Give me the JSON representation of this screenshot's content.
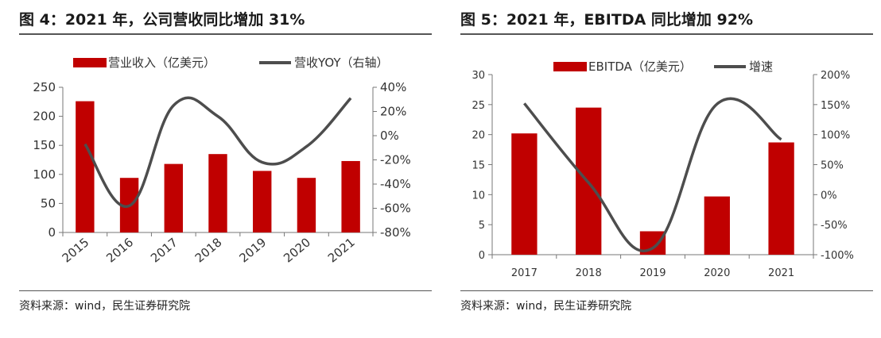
{
  "left": {
    "title": "图 4：2021 年，公司营收同比增加 31%",
    "source": "资料来源：wind，民生证券研究院",
    "chart_data": {
      "type": "bar",
      "categories": [
        "2015",
        "2016",
        "2017",
        "2018",
        "2019",
        "2020",
        "2021"
      ],
      "series": [
        {
          "name": "营业收入（亿美元）",
          "type": "bar",
          "axis": "left",
          "color": "#C00000",
          "values": [
            226,
            94,
            118,
            135,
            106,
            94,
            123
          ]
        },
        {
          "name": "营收YOY（右轴）",
          "type": "line",
          "axis": "right",
          "color": "#4D4D4D",
          "values": [
            -7,
            -58,
            25,
            16,
            -22,
            -9,
            31
          ]
        }
      ],
      "ylim": [
        0,
        250
      ],
      "yticks": [
        "0",
        "50",
        "100",
        "150",
        "200",
        "250"
      ],
      "y2lim": [
        -80,
        40
      ],
      "y2ticks": [
        "-80%",
        "-60%",
        "-40%",
        "-20%",
        "0%",
        "20%",
        "40%"
      ],
      "legend": "top"
    }
  },
  "right": {
    "title": "图 5：2021 年，EBITDA 同比增加 92%",
    "source": "资料来源：wind，民生证券研究院",
    "chart_data": {
      "type": "bar",
      "categories": [
        "2017",
        "2018",
        "2019",
        "2020",
        "2021"
      ],
      "series": [
        {
          "name": "EBITDA（亿美元）",
          "type": "bar",
          "axis": "left",
          "color": "#C00000",
          "values": [
            20.2,
            24.5,
            3.9,
            9.7,
            18.7
          ]
        },
        {
          "name": "增速",
          "type": "line",
          "axis": "right",
          "color": "#4D4D4D",
          "values": [
            152,
            20,
            -89,
            151,
            92
          ]
        }
      ],
      "ylim": [
        0,
        30
      ],
      "yticks": [
        "0",
        "5",
        "10",
        "15",
        "20",
        "25",
        "30"
      ],
      "y2lim": [
        -100,
        200
      ],
      "y2ticks": [
        "-100%",
        "-50%",
        "0%",
        "50%",
        "100%",
        "150%",
        "200%"
      ],
      "legend": "top"
    }
  }
}
